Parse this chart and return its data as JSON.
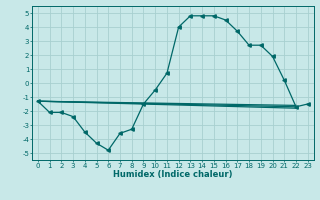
{
  "xlabel": "Humidex (Indice chaleur)",
  "bg_color": "#c8e8e8",
  "grid_color": "#a8d0d0",
  "line_color": "#006868",
  "xlim": [
    -0.5,
    23.5
  ],
  "ylim": [
    -5.5,
    5.5
  ],
  "yticks": [
    -5,
    -4,
    -3,
    -2,
    -1,
    0,
    1,
    2,
    3,
    4,
    5
  ],
  "xticks": [
    0,
    1,
    2,
    3,
    4,
    5,
    6,
    7,
    8,
    9,
    10,
    11,
    12,
    13,
    14,
    15,
    16,
    17,
    18,
    19,
    20,
    21,
    22,
    23
  ],
  "line1_x": [
    0,
    1,
    2,
    3,
    4,
    5,
    6,
    7,
    8,
    9,
    10,
    11,
    12,
    13,
    14,
    15,
    16,
    17,
    18,
    19,
    20,
    21,
    22,
    23
  ],
  "line1_y": [
    -1.3,
    -2.1,
    -2.1,
    -2.4,
    -3.5,
    -4.3,
    -4.8,
    -3.6,
    -3.3,
    -1.5,
    -0.5,
    0.7,
    4.0,
    4.8,
    4.8,
    4.8,
    4.5,
    3.7,
    2.7,
    2.7,
    1.9,
    0.2,
    -1.7,
    -1.5
  ],
  "line2_x": [
    0,
    22
  ],
  "line2_y": [
    -1.3,
    -1.6
  ],
  "line3_x": [
    0,
    22
  ],
  "line3_y": [
    -1.3,
    -1.7
  ],
  "line4_x": [
    0,
    22
  ],
  "line4_y": [
    -1.3,
    -1.8
  ],
  "tick_fontsize": 5,
  "xlabel_fontsize": 6,
  "lw": 0.9,
  "marker_size": 2.5
}
